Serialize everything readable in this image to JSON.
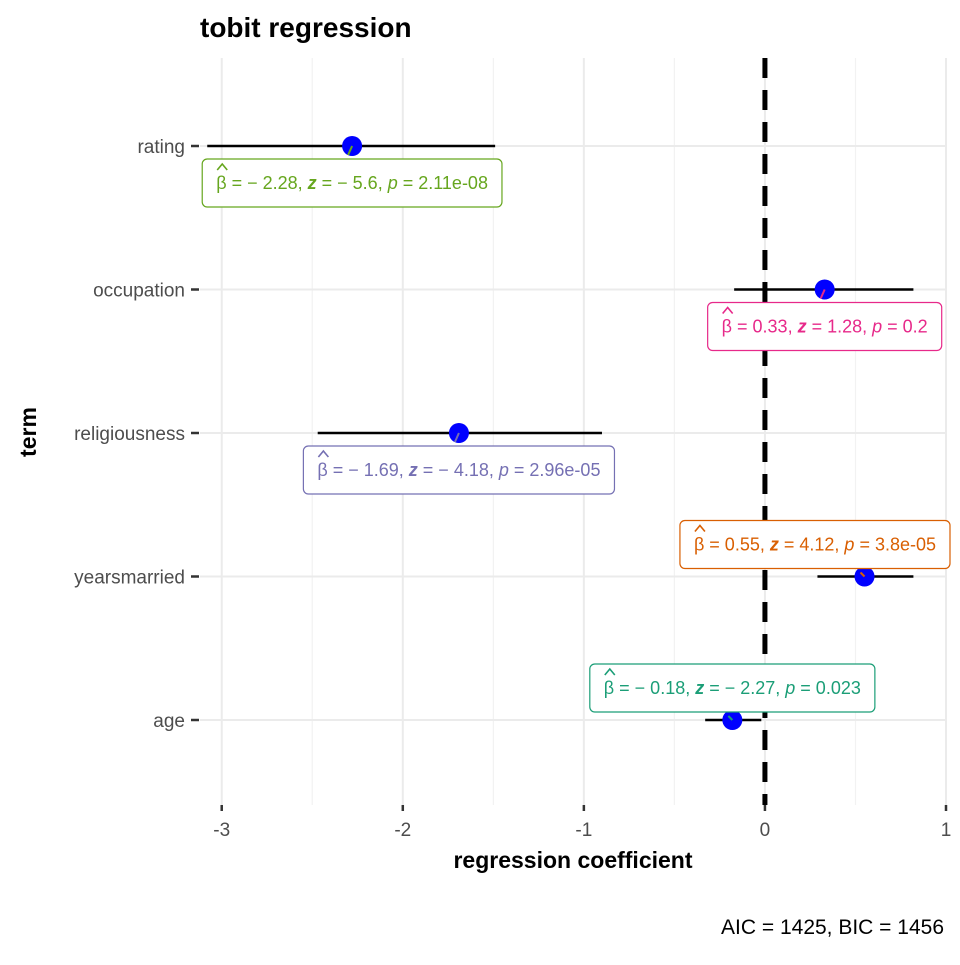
{
  "chart_data": {
    "type": "scatter",
    "title": "tobit regression",
    "xlabel": "regression coefficient",
    "ylabel": "term",
    "caption": "AIC = 1425, BIC = 1456",
    "xlim": [
      -3.12,
      1.0
    ],
    "xticks": [
      -3,
      -2,
      -1,
      0,
      1
    ],
    "xtick_labels": [
      "-3",
      "-2",
      "-1",
      "0",
      "1"
    ],
    "reference_line": 0,
    "grid": true,
    "point_color": "#0000ff",
    "terms": [
      {
        "term": "rating",
        "estimate": -2.28,
        "conf_low": -3.08,
        "conf_high": -1.49,
        "label_color": "#66a61e",
        "label": {
          "beta": "= − 2.28,",
          "z": "= − 5.6,",
          "p": "= 2.11e-08"
        }
      },
      {
        "term": "occupation",
        "estimate": 0.33,
        "conf_low": -0.17,
        "conf_high": 0.82,
        "label_color": "#e7298a",
        "label": {
          "beta": "= 0.33,",
          "z": "= 1.28,",
          "p": "= 0.2"
        }
      },
      {
        "term": "religiousness",
        "estimate": -1.69,
        "conf_low": -2.47,
        "conf_high": -0.9,
        "label_color": "#7570b3",
        "label": {
          "beta": "= − 1.69,",
          "z": "= − 4.18,",
          "p": "= 2.96e-05"
        }
      },
      {
        "term": "yearsmarried",
        "estimate": 0.55,
        "conf_low": 0.29,
        "conf_high": 0.82,
        "label_color": "#d95f02",
        "label": {
          "beta": "= 0.55,",
          "z": "= 4.12,",
          "p": "= 3.8e-05"
        }
      },
      {
        "term": "age",
        "estimate": -0.18,
        "conf_low": -0.33,
        "conf_high": -0.02,
        "label_color": "#1b9e77",
        "label": {
          "beta": "= − 0.18,",
          "z": "= − 2.27,",
          "p": "= 0.023"
        }
      }
    ],
    "stat_symbols": {
      "beta": "β",
      "z": "z",
      "p": "p"
    }
  }
}
